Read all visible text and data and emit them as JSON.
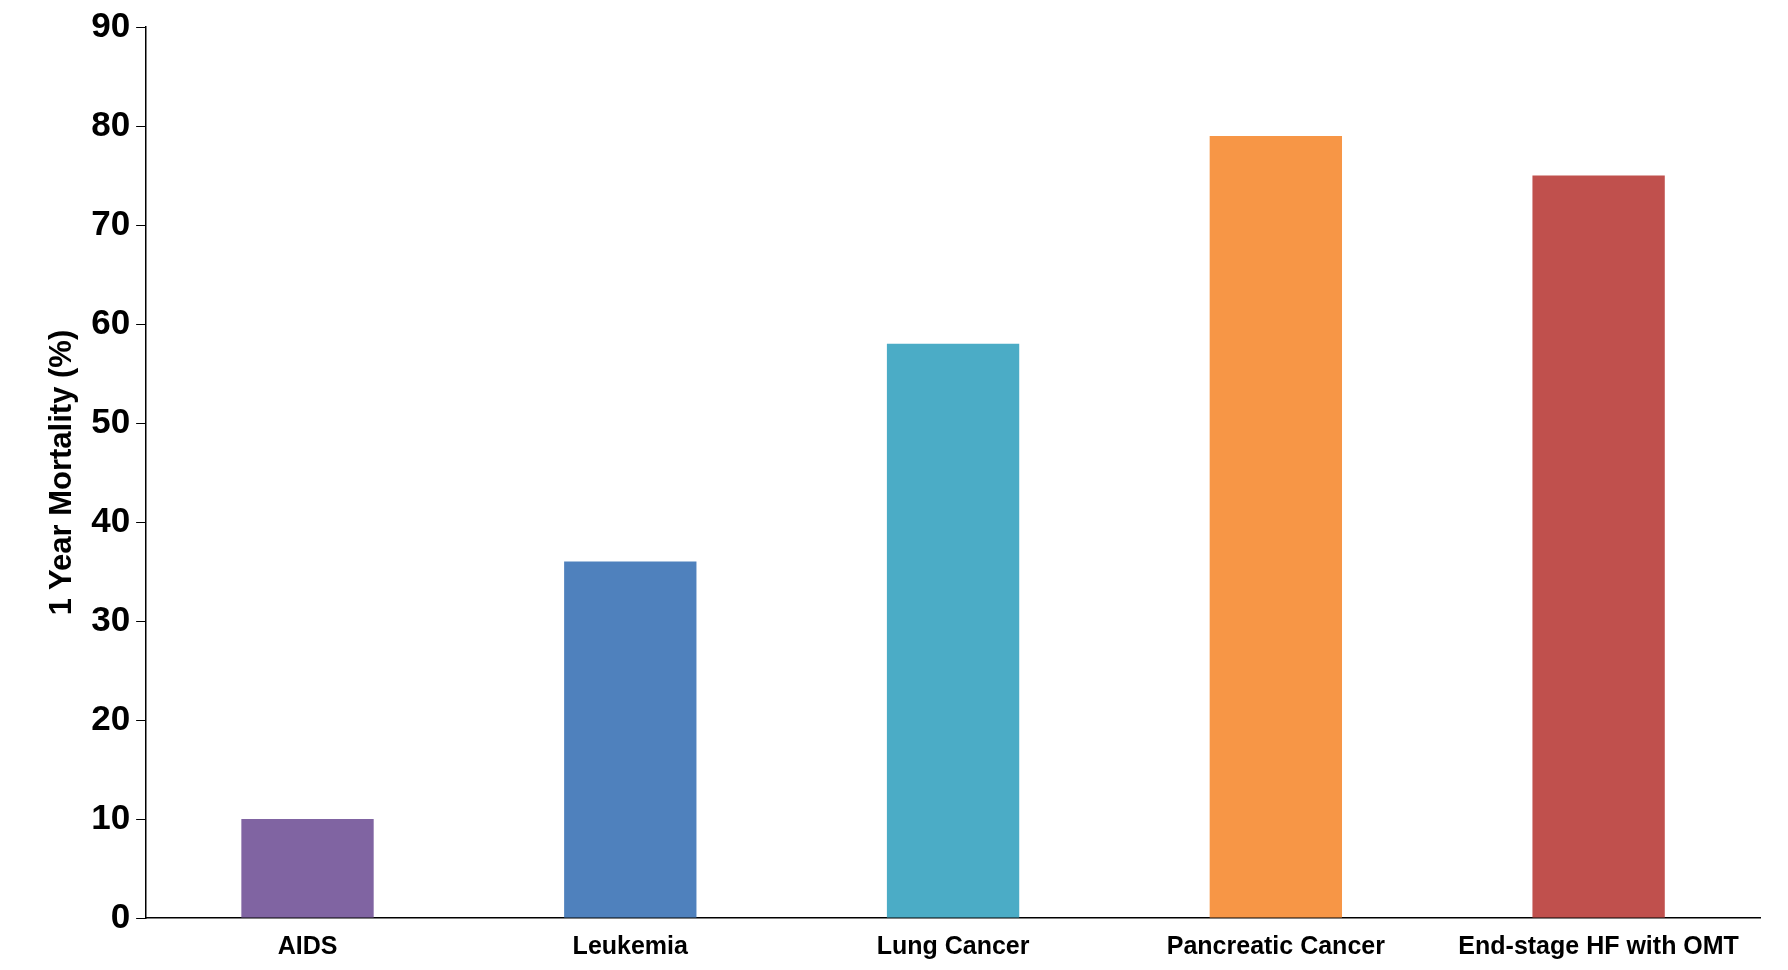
{
  "chart_data": {
    "type": "bar",
    "ylabel": "1 Year Mortality (%)",
    "categories": [
      "AIDS",
      "Leukemia",
      "Lung Cancer",
      "Pancreatic Cancer",
      "End-stage HF with OMT"
    ],
    "values": [
      10,
      36,
      58,
      79,
      75
    ],
    "colors": [
      "#8064a2",
      "#4f81bd",
      "#4bacc6",
      "#f79646",
      "#c0504d"
    ],
    "ylim": [
      0,
      90
    ],
    "yticks": [
      0,
      10,
      20,
      30,
      40,
      50,
      60,
      70,
      80,
      90
    ],
    "grid": false,
    "legend": false
  }
}
